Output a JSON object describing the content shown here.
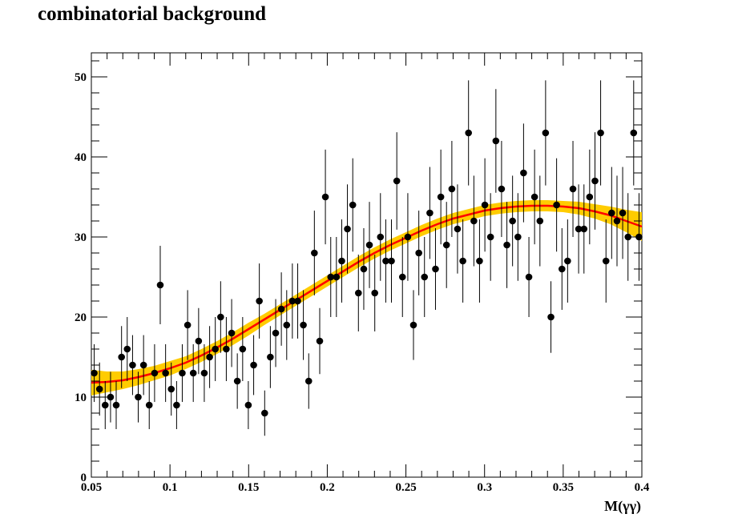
{
  "chart_data": {
    "type": "scatter",
    "title": "combinatorial background",
    "xlabel": "M(γγ)",
    "ylabel": "",
    "xlim": [
      0.05,
      0.4
    ],
    "ylim": [
      0,
      53
    ],
    "x_ticks": [
      0.05,
      0.1,
      0.15,
      0.2,
      0.25,
      0.3,
      0.35,
      0.4
    ],
    "x_tick_labels": [
      "0.05",
      "0.1",
      "0.15",
      "0.2",
      "0.25",
      "0.3",
      "0.35",
      "0.4"
    ],
    "y_ticks": [
      0,
      10,
      20,
      30,
      40,
      50
    ],
    "y_tick_labels": [
      "0",
      "10",
      "20",
      "30",
      "40",
      "50"
    ],
    "grid": false,
    "series": [
      {
        "kind": "points_with_errors",
        "color": "#000000",
        "x": [
          0.0518,
          0.0552,
          0.0588,
          0.0622,
          0.0658,
          0.0692,
          0.0728,
          0.0762,
          0.0798,
          0.0832,
          0.0868,
          0.0902,
          0.0938,
          0.0972,
          0.1008,
          0.1042,
          0.1078,
          0.1112,
          0.1148,
          0.1182,
          0.1218,
          0.1252,
          0.1288,
          0.1322,
          0.1358,
          0.1392,
          0.1428,
          0.1462,
          0.1498,
          0.1532,
          0.1568,
          0.1602,
          0.1638,
          0.1672,
          0.1708,
          0.1742,
          0.1778,
          0.1812,
          0.1848,
          0.1882,
          0.1918,
          0.1952,
          0.1988,
          0.2022,
          0.2058,
          0.2092,
          0.2128,
          0.2162,
          0.2198,
          0.2232,
          0.2268,
          0.2302,
          0.2338,
          0.2372,
          0.2408,
          0.2442,
          0.2478,
          0.2512,
          0.2548,
          0.2582,
          0.2618,
          0.2652,
          0.2688,
          0.2722,
          0.2758,
          0.2792,
          0.2828,
          0.2862,
          0.2898,
          0.2932,
          0.2968,
          0.3002,
          0.3038,
          0.3072,
          0.3108,
          0.3142,
          0.3178,
          0.3212,
          0.3248,
          0.3282,
          0.3318,
          0.3352,
          0.3388,
          0.3422,
          0.3458,
          0.3492,
          0.3528,
          0.3562,
          0.3598,
          0.3632,
          0.3668,
          0.3702,
          0.3738,
          0.3772,
          0.3808,
          0.3842,
          0.3878,
          0.3912,
          0.3948,
          0.3982
        ],
        "y": [
          13,
          11,
          9,
          10,
          9,
          15,
          16,
          14,
          10,
          14,
          9,
          13,
          24,
          13,
          11,
          9,
          13,
          19,
          13,
          17,
          13,
          15,
          16,
          20,
          16,
          18,
          12,
          16,
          9,
          14,
          22,
          8,
          15,
          18,
          21,
          19,
          22,
          22,
          19,
          12,
          28,
          17,
          35,
          25,
          25,
          27,
          31,
          34,
          23,
          26,
          29,
          23,
          30,
          27,
          27,
          37,
          25,
          30,
          19,
          28,
          25,
          33,
          26,
          35,
          29,
          36,
          31,
          27,
          43,
          32,
          27,
          34,
          30,
          42,
          36,
          29,
          32,
          30,
          38,
          25,
          35,
          32,
          43,
          20,
          34,
          26,
          27,
          36,
          31,
          31,
          35,
          37,
          43,
          27,
          33,
          32,
          33,
          30,
          43,
          30
        ]
      },
      {
        "kind": "fit_curve",
        "color": "#ff0000",
        "band_color": "#ffcc00",
        "x": [
          0.05,
          0.06,
          0.07,
          0.08,
          0.09,
          0.1,
          0.11,
          0.12,
          0.13,
          0.14,
          0.15,
          0.16,
          0.17,
          0.18,
          0.19,
          0.2,
          0.21,
          0.22,
          0.23,
          0.24,
          0.25,
          0.26,
          0.27,
          0.28,
          0.29,
          0.3,
          0.31,
          0.32,
          0.33,
          0.34,
          0.35,
          0.36,
          0.37,
          0.38,
          0.39,
          0.4
        ],
        "y": [
          11.8,
          11.9,
          12.1,
          12.5,
          13.0,
          13.6,
          14.3,
          15.2,
          16.2,
          17.3,
          18.5,
          19.7,
          20.9,
          22.1,
          23.3,
          24.5,
          25.7,
          26.9,
          28.0,
          29.0,
          29.9,
          30.8,
          31.6,
          32.3,
          32.8,
          33.3,
          33.6,
          33.8,
          33.9,
          33.9,
          33.8,
          33.6,
          33.2,
          32.7,
          32.0,
          31.3
        ],
        "band_halfwidth": [
          1.6,
          1.3,
          1.1,
          1.0,
          0.9,
          0.9,
          0.8,
          0.8,
          0.8,
          0.8,
          0.8,
          0.7,
          0.7,
          0.7,
          0.7,
          0.7,
          0.7,
          0.7,
          0.7,
          0.7,
          0.7,
          0.7,
          0.7,
          0.7,
          0.7,
          0.7,
          0.7,
          0.7,
          0.7,
          0.7,
          0.7,
          0.8,
          0.9,
          1.1,
          1.4,
          1.8
        ]
      }
    ]
  }
}
